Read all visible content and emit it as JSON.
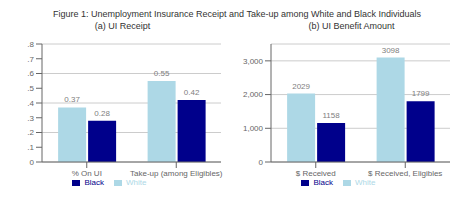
{
  "title": "Figure 1: Unemployment Insurance Receipt and Take-up among White and Black Individuals",
  "chart_data": [
    {
      "type": "bar",
      "title": "(a) UI Receipt",
      "categories": [
        "% On UI",
        "Take-up (among Eligibles)"
      ],
      "series": [
        {
          "name": "White",
          "color": "#add8e6",
          "values": [
            0.37,
            0.55
          ]
        },
        {
          "name": "Black",
          "color": "#00008b",
          "values": [
            0.28,
            0.42
          ]
        }
      ],
      "ylim": [
        0,
        0.8
      ],
      "yticks": [
        0,
        {
          "value": 0.1,
          "label": ".1"
        },
        {
          "value": 0.2,
          "label": ".2"
        },
        {
          "value": 0.3,
          "label": ".3"
        },
        {
          "value": 0.4,
          "label": ".4"
        },
        {
          "value": 0.5,
          "label": ".5"
        },
        {
          "value": 0.6,
          "label": ".6"
        },
        {
          "value": 0.7,
          "label": ".7"
        },
        {
          "value": 0.8,
          "label": ".8"
        }
      ],
      "grid": true,
      "legend": "bottom",
      "data_labels": true
    },
    {
      "type": "bar",
      "title": "(b) UI Benefit Amount",
      "categories": [
        "$ Received",
        "$ Received, Eligibles"
      ],
      "series": [
        {
          "name": "White",
          "color": "#add8e6",
          "values": [
            2029,
            3098
          ]
        },
        {
          "name": "Black",
          "color": "#00008b",
          "values": [
            1158,
            1799
          ]
        }
      ],
      "ylim": [
        0,
        3500
      ],
      "yticks": [
        0,
        {
          "value": 1000,
          "label": "1,000"
        },
        {
          "value": 2000,
          "label": "2,000"
        },
        {
          "value": 3000,
          "label": "3,000"
        }
      ],
      "grid": true,
      "legend": "bottom",
      "data_labels": true
    }
  ]
}
